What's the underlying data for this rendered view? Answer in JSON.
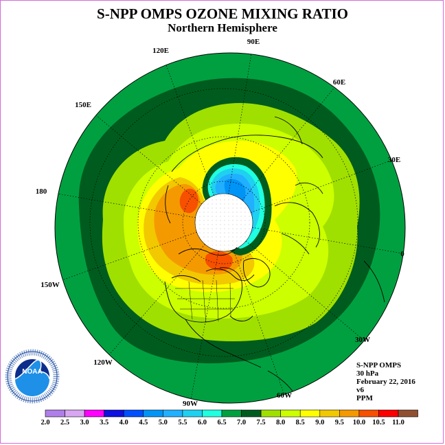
{
  "title": "S-NPP OMPS OZONE MIXING RATIO",
  "subtitle": "Northern Hemisphere",
  "longitude_labels": [
    "90E",
    "60E",
    "30E",
    "0",
    "30W",
    "60W",
    "90W",
    "120W",
    "150W",
    "180",
    "150E",
    "120E"
  ],
  "info": {
    "instrument": "S-NPP OMPS",
    "level": "30 hPa",
    "date": "February 22, 2016",
    "version": "v6",
    "units": "PPM"
  },
  "logo": {
    "text": "NOAA",
    "ring_text": "NATIONAL OCEANIC AND ATMOSPHERIC ADMINISTRATION · U.S. DEPARTMENT OF COMMERCE"
  },
  "colorbar": {
    "labels": [
      "2.0",
      "2.5",
      "3.0",
      "3.5",
      "4.0",
      "4.5",
      "5.0",
      "5.5",
      "6.0",
      "6.5",
      "7.0",
      "7.5",
      "8.0",
      "8.5",
      "9.0",
      "9.5",
      "10.0",
      "10.5",
      "11.0"
    ],
    "colors": [
      "#b07ee8",
      "#d8a6f2",
      "#ff00ff",
      "#1010e0",
      "#0050ff",
      "#0094f6",
      "#20b0ff",
      "#20d0f0",
      "#20ffdf",
      "#00a040",
      "#005c1e",
      "#a0e000",
      "#ccff00",
      "#ffff00",
      "#f2c800",
      "#f49a00",
      "#f65000",
      "#ff0000",
      "#905030"
    ]
  },
  "map_colors": {
    "v6_5": "#00a040",
    "v7_0": "#005c1e",
    "v7_5": "#a0e000",
    "v8_0": "#ccff00",
    "v8_5": "#ffff00",
    "v9_0": "#f2c800",
    "v9_5": "#f49a00",
    "v10_0": "#f65000",
    "v6_0": "#20ffdf",
    "v5_5": "#20d0f0",
    "v5_0": "#20b0ff",
    "v4_5": "#0094f6",
    "pole": "#ffffff"
  }
}
